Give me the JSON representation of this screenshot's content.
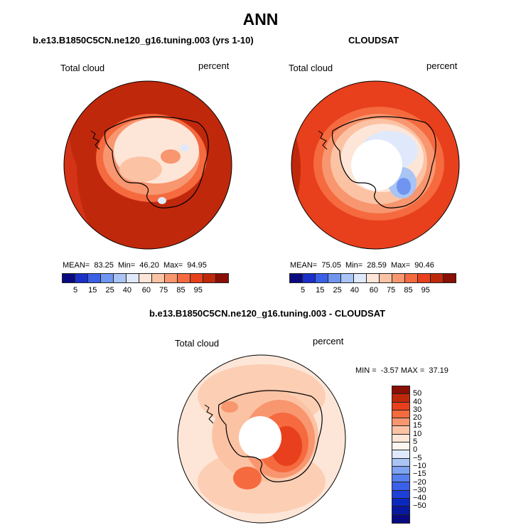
{
  "figure": {
    "title": "ANN",
    "left_panel": {
      "title": "b.e13.B1850C5CN.ne120_g16.tuning.003 (yrs 1-10)",
      "variable": "Total cloud",
      "units": "percent",
      "stats": {
        "mean_label": "MEAN=",
        "mean": "83.25",
        "min_label": "Min=",
        "min": "46.20",
        "max_label": "Max=",
        "max": "94.95"
      }
    },
    "right_panel": {
      "title": "CLOUDSAT",
      "variable": "Total cloud",
      "units": "percent",
      "stats": {
        "mean_label": "MEAN=",
        "mean": "75.05",
        "min_label": "Min=",
        "min": "28.59",
        "max_label": "Max=",
        "max": "90.46"
      }
    },
    "diff_panel": {
      "title": "b.e13.B1850C5CN.ne120_g16.tuning.003 - CLOUDSAT",
      "variable": "Total cloud",
      "units": "percent",
      "stats": {
        "min_label": "MIN =",
        "min": "-3.57",
        "max_label": "MAX =",
        "max": "37.19"
      }
    }
  },
  "colorbar_abs": {
    "colors": [
      "#0a0a80",
      "#1a2fc8",
      "#3a60e8",
      "#6f95f0",
      "#a9c4f5",
      "#dfe9fb",
      "#fde6d8",
      "#fbc3a4",
      "#f89670",
      "#f56a3f",
      "#e8401c",
      "#c0280c",
      "#8a0f05"
    ],
    "tick_labels": [
      "5",
      "15",
      "25",
      "40",
      "60",
      "75",
      "85",
      "95"
    ]
  },
  "colorbar_diff": {
    "colors": [
      "#8a0f05",
      "#c0280c",
      "#e8401c",
      "#f56a3f",
      "#f89670",
      "#fbc3a4",
      "#fde6d8",
      "#fff5ef",
      "#dfe9fb",
      "#a9c4f5",
      "#7da3f2",
      "#5580ee",
      "#3a60e8",
      "#1f40d8",
      "#0a28c0",
      "#0818a0",
      "#0a0a80"
    ],
    "tick_labels": [
      "50",
      "40",
      "30",
      "20",
      "15",
      "10",
      "5",
      "0",
      "−5",
      "−10",
      "−15",
      "−20",
      "−30",
      "−40",
      "−50"
    ]
  }
}
